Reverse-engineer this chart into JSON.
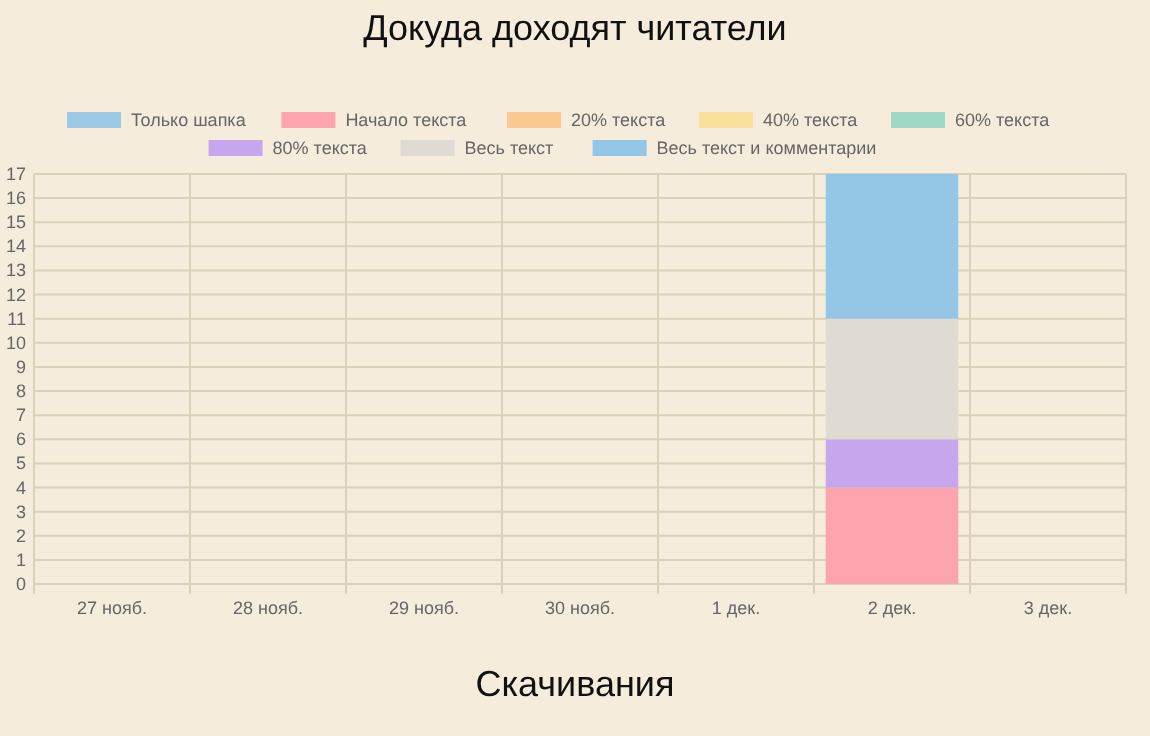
{
  "chart_data": {
    "type": "bar",
    "title": "Докуда доходят читатели",
    "xlabel": "Скачивания",
    "stacked": true,
    "legend": "top",
    "grid": true,
    "categories": [
      "27 нояб.",
      "28 нояб.",
      "29 нояб.",
      "30 нояб.",
      "1 дек.",
      "2 дек.",
      "3 дек."
    ],
    "ylim": [
      0,
      17
    ],
    "yticks": [
      0,
      1,
      2,
      3,
      4,
      5,
      6,
      7,
      8,
      9,
      10,
      11,
      12,
      13,
      14,
      15,
      16,
      17
    ],
    "series": [
      {
        "name": "Только шапка",
        "color": "#9cc9e6",
        "values": [
          0,
          0,
          0,
          0,
          0,
          0,
          0
        ]
      },
      {
        "name": "Начало текста",
        "color": "#fda5af",
        "values": [
          0,
          0,
          0,
          0,
          0,
          4,
          0
        ]
      },
      {
        "name": "20% текста",
        "color": "#fbc890",
        "values": [
          0,
          0,
          0,
          0,
          0,
          0,
          0
        ]
      },
      {
        "name": "40% текста",
        "color": "#fbe09c",
        "values": [
          0,
          0,
          0,
          0,
          0,
          0,
          0
        ]
      },
      {
        "name": "60% текста",
        "color": "#a0d8c8",
        "values": [
          0,
          0,
          0,
          0,
          0,
          0,
          0
        ]
      },
      {
        "name": "80% текста",
        "color": "#c6a6ec",
        "values": [
          0,
          0,
          0,
          0,
          0,
          2,
          0
        ]
      },
      {
        "name": "Весь текст",
        "color": "#dfdbd3",
        "values": [
          0,
          0,
          0,
          0,
          0,
          5,
          0
        ]
      },
      {
        "name": "Весь текст и комментарии",
        "color": "#94c6e6",
        "values": [
          0,
          0,
          0,
          0,
          0,
          6,
          0
        ]
      }
    ]
  }
}
